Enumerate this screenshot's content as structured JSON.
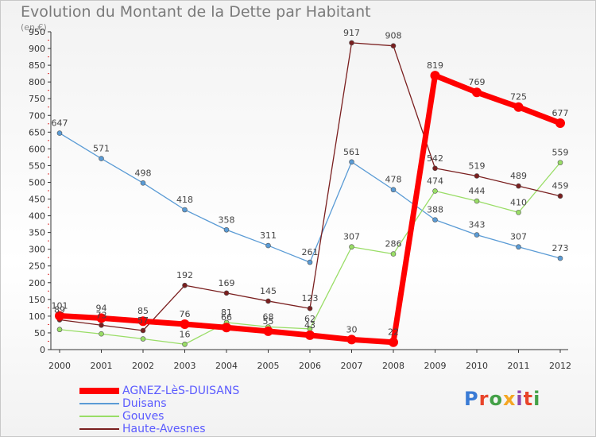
{
  "title": "Evolution du Montant de la Dette par Habitant",
  "subtitle": "(en €)",
  "logo": {
    "text": "Proxiti",
    "colors": [
      "#3a7bd5",
      "#e8442a",
      "#43a047",
      "#f5a623",
      "#8e44ad",
      "#e8442a",
      "#43a047"
    ]
  },
  "chart_data": {
    "type": "line",
    "title": "Evolution du Montant de la Dette par Habitant",
    "subtitle": "(en €)",
    "x": [
      "2000",
      "2001",
      "2002",
      "2003",
      "2004",
      "2005",
      "2006",
      "2007",
      "2008",
      "2009",
      "2010",
      "2011",
      "2012"
    ],
    "y_ticks": [
      "0",
      "50",
      "100",
      "150",
      "200",
      "250",
      "300",
      "350",
      "400",
      "450",
      "500",
      "550",
      "600",
      "650",
      "700",
      "750",
      "800",
      "850",
      "900",
      "950"
    ],
    "ylim": [
      0,
      950
    ],
    "grid": false,
    "legend": "bottom-left",
    "series": [
      {
        "name": "AGNEZ-LèS-DUISANS",
        "color": "#ff0000",
        "width": 7,
        "values": [
          101,
          94,
          85,
          76,
          66,
          55,
          43,
          30,
          22,
          819,
          769,
          725,
          677
        ],
        "labels": [
          "101",
          "94",
          "85",
          "76",
          "66",
          "55",
          "43",
          "30",
          "22",
          "819",
          "769",
          "725",
          "677"
        ]
      },
      {
        "name": "Duisans",
        "color": "#5a9bd5",
        "width": 1.3,
        "values": [
          647,
          571,
          498,
          418,
          358,
          311,
          261,
          561,
          478,
          388,
          343,
          307,
          273
        ],
        "labels": [
          "647",
          "571",
          "498",
          "418",
          "358",
          "311",
          "261",
          "561",
          "478",
          "388",
          "343",
          "307",
          "273"
        ]
      },
      {
        "name": "Gouves",
        "color": "#99dd66",
        "width": 1.3,
        "values": [
          60,
          47,
          32,
          16,
          81,
          68,
          62,
          307,
          286,
          474,
          444,
          410,
          559
        ],
        "labels": [
          "",
          "",
          "",
          "16",
          "81",
          "68",
          "62",
          "307",
          "286",
          "474",
          "444",
          "410",
          "559"
        ]
      },
      {
        "name": "Haute-Avesnes",
        "color": "#7a1f1f",
        "width": 1.3,
        "values": [
          89,
          73,
          57,
          192,
          169,
          145,
          123,
          917,
          908,
          542,
          519,
          489,
          459
        ],
        "labels": [
          "89",
          "73",
          "57",
          "192",
          "169",
          "145",
          "123",
          "917",
          "908",
          "542",
          "519",
          "489",
          "459"
        ]
      }
    ]
  }
}
